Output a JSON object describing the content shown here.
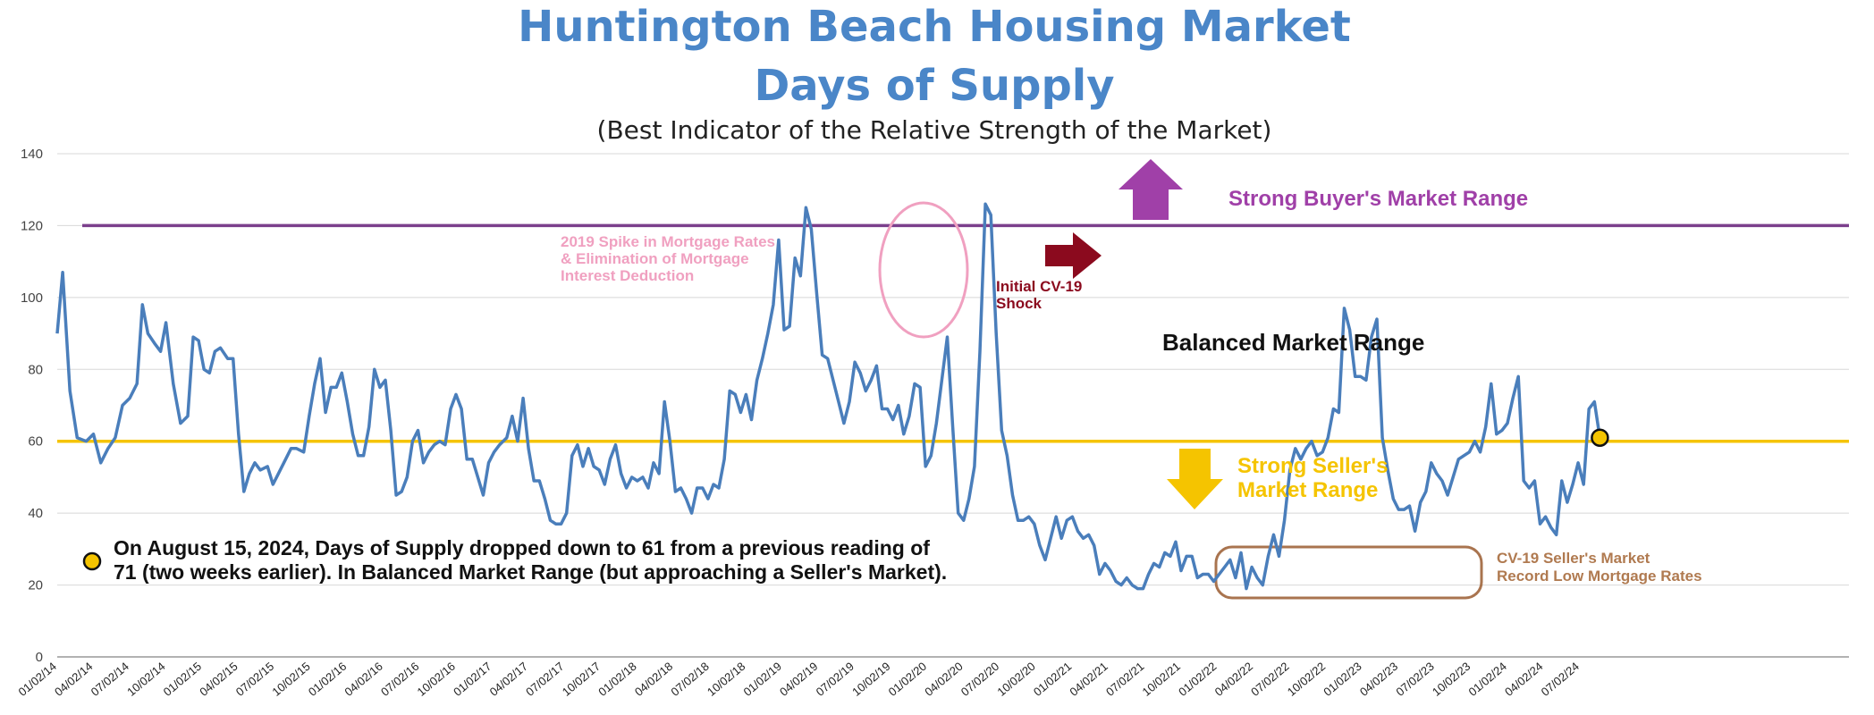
{
  "chart_data": {
    "type": "line",
    "title_line1": "Huntington Beach Housing Market",
    "title_line2": "Days of Supply",
    "subtitle": "(Best Indicator of the Relative Strength of the Market)",
    "ylim": [
      0,
      140
    ],
    "y_ticks": [
      0,
      20,
      40,
      60,
      80,
      100,
      120,
      140
    ],
    "grid": true,
    "x_start": "01/02/14",
    "x_tick_labels": [
      "01/02/14",
      "04/02/14",
      "07/02/14",
      "10/02/14",
      "01/02/15",
      "04/02/15",
      "07/02/15",
      "10/02/15",
      "01/02/16",
      "04/02/16",
      "07/02/16",
      "10/02/16",
      "01/02/17",
      "04/02/17",
      "07/02/17",
      "10/02/17",
      "01/02/18",
      "04/02/18",
      "07/02/18",
      "10/02/18",
      "01/02/19",
      "04/02/19",
      "07/02/19",
      "10/02/19",
      "01/02/20",
      "04/02/20",
      "07/02/20",
      "10/02/20",
      "01/02/21",
      "04/02/21",
      "07/02/21",
      "10/02/21",
      "01/02/22",
      "04/02/22",
      "07/02/22",
      "10/02/22",
      "01/02/23",
      "04/02/23",
      "07/02/23",
      "10/02/23",
      "01/02/24",
      "04/02/24",
      "07/02/24"
    ],
    "series": [
      {
        "name": "Days of Supply",
        "color": "#4a7ebb",
        "points": [
          [
            0,
            90
          ],
          [
            0.15,
            107
          ],
          [
            0.35,
            74
          ],
          [
            0.55,
            61
          ],
          [
            0.8,
            60
          ],
          [
            1.0,
            62
          ],
          [
            1.2,
            54
          ],
          [
            1.4,
            58
          ],
          [
            1.6,
            61
          ],
          [
            1.8,
            70
          ],
          [
            2.0,
            72
          ],
          [
            2.2,
            76
          ],
          [
            2.35,
            98
          ],
          [
            2.5,
            90
          ],
          [
            2.7,
            87
          ],
          [
            2.85,
            85
          ],
          [
            3.0,
            93
          ],
          [
            3.2,
            76
          ],
          [
            3.4,
            65
          ],
          [
            3.6,
            67
          ],
          [
            3.75,
            89
          ],
          [
            3.9,
            88
          ],
          [
            4.05,
            80
          ],
          [
            4.2,
            79
          ],
          [
            4.35,
            85
          ],
          [
            4.5,
            86
          ],
          [
            4.7,
            83
          ],
          [
            4.85,
            83
          ],
          [
            5.0,
            62
          ],
          [
            5.15,
            46
          ],
          [
            5.3,
            51
          ],
          [
            5.45,
            54
          ],
          [
            5.6,
            52
          ],
          [
            5.8,
            53
          ],
          [
            5.95,
            48
          ],
          [
            6.1,
            51
          ],
          [
            6.3,
            55
          ],
          [
            6.45,
            58
          ],
          [
            6.6,
            58
          ],
          [
            6.8,
            57
          ],
          [
            6.95,
            67
          ],
          [
            7.1,
            76
          ],
          [
            7.25,
            83
          ],
          [
            7.4,
            68
          ],
          [
            7.55,
            75
          ],
          [
            7.7,
            75
          ],
          [
            7.85,
            79
          ],
          [
            8.0,
            71
          ],
          [
            8.15,
            62
          ],
          [
            8.3,
            56
          ],
          [
            8.45,
            56
          ],
          [
            8.6,
            64
          ],
          [
            8.75,
            80
          ],
          [
            8.9,
            75
          ],
          [
            9.05,
            77
          ],
          [
            9.2,
            63
          ],
          [
            9.35,
            45
          ],
          [
            9.5,
            46
          ],
          [
            9.65,
            50
          ],
          [
            9.8,
            60
          ],
          [
            9.95,
            63
          ],
          [
            10.1,
            54
          ],
          [
            10.25,
            57
          ],
          [
            10.4,
            59
          ],
          [
            10.55,
            60
          ],
          [
            10.7,
            59
          ],
          [
            10.85,
            69
          ],
          [
            11.0,
            73
          ],
          [
            11.15,
            69
          ],
          [
            11.3,
            55
          ],
          [
            11.45,
            55
          ],
          [
            11.6,
            50
          ],
          [
            11.75,
            45
          ],
          [
            11.9,
            54
          ],
          [
            12.05,
            57
          ],
          [
            12.2,
            59
          ],
          [
            12.4,
            61
          ],
          [
            12.55,
            67
          ],
          [
            12.7,
            60
          ],
          [
            12.85,
            72
          ],
          [
            13.0,
            58
          ],
          [
            13.15,
            49
          ],
          [
            13.3,
            49
          ],
          [
            13.45,
            44
          ],
          [
            13.6,
            38
          ],
          [
            13.75,
            37
          ],
          [
            13.9,
            37
          ],
          [
            14.05,
            40
          ],
          [
            14.2,
            56
          ],
          [
            14.35,
            59
          ],
          [
            14.5,
            53
          ],
          [
            14.65,
            58
          ],
          [
            14.8,
            53
          ],
          [
            14.95,
            52
          ],
          [
            15.1,
            48
          ],
          [
            15.25,
            55
          ],
          [
            15.4,
            59
          ],
          [
            15.55,
            51
          ],
          [
            15.7,
            47
          ],
          [
            15.85,
            50
          ],
          [
            16.0,
            49
          ],
          [
            16.15,
            50
          ],
          [
            16.3,
            47
          ],
          [
            16.45,
            54
          ],
          [
            16.6,
            51
          ],
          [
            16.75,
            71
          ],
          [
            16.9,
            60
          ],
          [
            17.05,
            46
          ],
          [
            17.2,
            47
          ],
          [
            17.35,
            44
          ],
          [
            17.5,
            40
          ],
          [
            17.65,
            47
          ],
          [
            17.8,
            47
          ],
          [
            17.95,
            44
          ],
          [
            18.1,
            48
          ],
          [
            18.25,
            47
          ],
          [
            18.4,
            55
          ],
          [
            18.55,
            74
          ],
          [
            18.7,
            73
          ],
          [
            18.85,
            68
          ],
          [
            19.0,
            73
          ],
          [
            19.15,
            66
          ],
          [
            19.3,
            77
          ],
          [
            19.45,
            83
          ],
          [
            19.6,
            90
          ],
          [
            19.75,
            98
          ],
          [
            19.9,
            116
          ],
          [
            20.05,
            91
          ],
          [
            20.2,
            92
          ],
          [
            20.35,
            111
          ],
          [
            20.5,
            106
          ],
          [
            20.65,
            125
          ],
          [
            20.8,
            119
          ],
          [
            20.95,
            101
          ],
          [
            21.1,
            84
          ],
          [
            21.25,
            83
          ],
          [
            21.4,
            77
          ],
          [
            21.55,
            71
          ],
          [
            21.7,
            65
          ],
          [
            21.85,
            71
          ],
          [
            22.0,
            82
          ],
          [
            22.15,
            79
          ],
          [
            22.3,
            74
          ],
          [
            22.45,
            77
          ],
          [
            22.6,
            81
          ],
          [
            22.75,
            69
          ],
          [
            22.9,
            69
          ],
          [
            23.05,
            66
          ],
          [
            23.2,
            70
          ],
          [
            23.35,
            62
          ],
          [
            23.5,
            67
          ],
          [
            23.65,
            76
          ],
          [
            23.8,
            75
          ],
          [
            23.95,
            53
          ],
          [
            24.1,
            56
          ],
          [
            24.25,
            65
          ],
          [
            24.4,
            77
          ],
          [
            24.55,
            89
          ],
          [
            24.7,
            64
          ],
          [
            24.85,
            40
          ],
          [
            25.0,
            38
          ],
          [
            25.15,
            44
          ],
          [
            25.3,
            53
          ],
          [
            25.45,
            85
          ],
          [
            25.6,
            126
          ],
          [
            25.75,
            123
          ],
          [
            25.9,
            90
          ],
          [
            26.05,
            63
          ],
          [
            26.2,
            56
          ],
          [
            26.35,
            45
          ],
          [
            26.5,
            38
          ],
          [
            26.65,
            38
          ],
          [
            26.8,
            39
          ],
          [
            26.95,
            37
          ],
          [
            27.1,
            31
          ],
          [
            27.25,
            27
          ],
          [
            27.4,
            33
          ],
          [
            27.55,
            39
          ],
          [
            27.7,
            33
          ],
          [
            27.85,
            38
          ],
          [
            28.0,
            39
          ],
          [
            28.15,
            35
          ],
          [
            28.3,
            33
          ],
          [
            28.45,
            34
          ],
          [
            28.6,
            31
          ],
          [
            28.75,
            23
          ],
          [
            28.9,
            26
          ],
          [
            29.05,
            24
          ],
          [
            29.2,
            21
          ],
          [
            29.35,
            20
          ],
          [
            29.5,
            22
          ],
          [
            29.65,
            20
          ],
          [
            29.8,
            19
          ],
          [
            29.95,
            19
          ],
          [
            30.1,
            23
          ],
          [
            30.25,
            26
          ],
          [
            30.4,
            25
          ],
          [
            30.55,
            29
          ],
          [
            30.7,
            28
          ],
          [
            30.85,
            32
          ],
          [
            31.0,
            24
          ],
          [
            31.15,
            28
          ],
          [
            31.3,
            28
          ],
          [
            31.45,
            22
          ],
          [
            31.6,
            23
          ],
          [
            31.75,
            23
          ],
          [
            31.9,
            21
          ],
          [
            32.05,
            23
          ],
          [
            32.2,
            25
          ],
          [
            32.35,
            27
          ],
          [
            32.5,
            22
          ],
          [
            32.65,
            29
          ],
          [
            32.8,
            19
          ],
          [
            32.95,
            25
          ],
          [
            33.1,
            22
          ],
          [
            33.25,
            20
          ],
          [
            33.4,
            28
          ],
          [
            33.55,
            34
          ],
          [
            33.7,
            28
          ],
          [
            33.85,
            38
          ],
          [
            34.0,
            52
          ],
          [
            34.15,
            58
          ],
          [
            34.3,
            55
          ],
          [
            34.45,
            58
          ],
          [
            34.6,
            60
          ],
          [
            34.75,
            56
          ],
          [
            34.9,
            57
          ],
          [
            35.05,
            61
          ],
          [
            35.2,
            69
          ],
          [
            35.35,
            68
          ],
          [
            35.5,
            97
          ],
          [
            35.65,
            91
          ],
          [
            35.8,
            78
          ],
          [
            35.95,
            78
          ],
          [
            36.1,
            77
          ],
          [
            36.25,
            89
          ],
          [
            36.4,
            94
          ],
          [
            36.55,
            61
          ],
          [
            36.7,
            52
          ],
          [
            36.85,
            44
          ],
          [
            37.0,
            41
          ],
          [
            37.15,
            41
          ],
          [
            37.3,
            42
          ],
          [
            37.45,
            35
          ],
          [
            37.6,
            43
          ],
          [
            37.75,
            46
          ],
          [
            37.9,
            54
          ],
          [
            38.05,
            51
          ],
          [
            38.2,
            49
          ],
          [
            38.35,
            45
          ],
          [
            38.5,
            50
          ],
          [
            38.65,
            55
          ],
          [
            38.8,
            56
          ],
          [
            38.95,
            57
          ],
          [
            39.1,
            60
          ],
          [
            39.25,
            57
          ],
          [
            39.4,
            64
          ],
          [
            39.55,
            76
          ],
          [
            39.7,
            62
          ],
          [
            39.85,
            63
          ],
          [
            40.0,
            65
          ],
          [
            40.15,
            72
          ],
          [
            40.3,
            78
          ],
          [
            40.45,
            49
          ],
          [
            40.6,
            47
          ],
          [
            40.75,
            49
          ],
          [
            40.9,
            37
          ],
          [
            41.05,
            39
          ],
          [
            41.2,
            36
          ],
          [
            41.35,
            34
          ],
          [
            41.5,
            49
          ],
          [
            41.65,
            43
          ],
          [
            41.8,
            48
          ],
          [
            41.95,
            54
          ],
          [
            42.1,
            48
          ],
          [
            42.25,
            69
          ],
          [
            42.4,
            71
          ],
          [
            42.55,
            61
          ]
        ]
      }
    ],
    "reference_lines": [
      {
        "label": "Strong Buyer's Market Range",
        "y": 120,
        "color": "#7b3f8c"
      },
      {
        "label": "Strong Seller's Market Range",
        "y": 60,
        "color": "#f5c400"
      }
    ],
    "annotations": {
      "buyer_label": "Strong Buyer's Market Range",
      "buyer_color": "#a040a8",
      "balanced_label": "Balanced Market Range",
      "seller_label_line1": "Strong Seller's",
      "seller_label_line2": "Market Range",
      "seller_color": "#f5c400",
      "spike_line1": "2019 Spike in Mortgage Rates",
      "spike_line2": "& Elimination of Mortgage",
      "spike_line3": "Interest Deduction",
      "spike_color": "#f0a0c0",
      "shock_line1": "Initial CV-19",
      "shock_line2": "Shock",
      "shock_color": "#8b0a1e",
      "cv_line1": "CV-19 Seller's Market",
      "cv_line2": "Record Low Mortgage Rates",
      "cv_color": "#b07a50",
      "note_line1": "On August 15, 2024, Days of Supply dropped down to 61 from a previous reading of",
      "note_line2": "71 (two weeks earlier).  In Balanced Market Range (but approaching a Seller's Market).",
      "current_value": 61,
      "marker_color": "#f5c400"
    }
  }
}
